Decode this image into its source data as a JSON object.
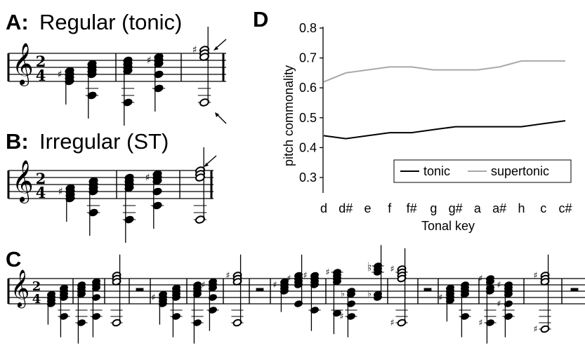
{
  "panels": {
    "a": {
      "letter": "A:",
      "title": "Regular (tonic)",
      "time_sig": [
        "2",
        "4"
      ]
    },
    "b": {
      "letter": "B:",
      "title": "Irregular (ST)",
      "time_sig": [
        "2",
        "4"
      ]
    },
    "c": {
      "letter": "C",
      "time_sig": [
        "2",
        "4"
      ]
    },
    "d": {
      "letter": "D"
    }
  },
  "chart_data": {
    "type": "line",
    "categories": [
      "d",
      "d#",
      "e",
      "f",
      "f#",
      "g",
      "g#",
      "a",
      "a#",
      "h",
      "c",
      "c#"
    ],
    "series": [
      {
        "name": "tonic",
        "color": "#000000",
        "values": [
          0.44,
          0.43,
          0.44,
          0.45,
          0.45,
          0.46,
          0.47,
          0.47,
          0.47,
          0.47,
          0.48,
          0.49
        ]
      },
      {
        "name": "supertonic",
        "color": "#a9a9a9",
        "values": [
          0.62,
          0.65,
          0.66,
          0.67,
          0.67,
          0.66,
          0.66,
          0.66,
          0.67,
          0.69,
          0.69,
          0.69
        ]
      }
    ],
    "xlabel": "Tonal key",
    "ylabel": "pitch commonality",
    "ylim": [
      0.25,
      0.8
    ],
    "yticks": [
      "0.3",
      "0.4",
      "0.5",
      "0.6",
      "0.7",
      "0.8"
    ],
    "legend": "bottom-right",
    "grid": false
  }
}
